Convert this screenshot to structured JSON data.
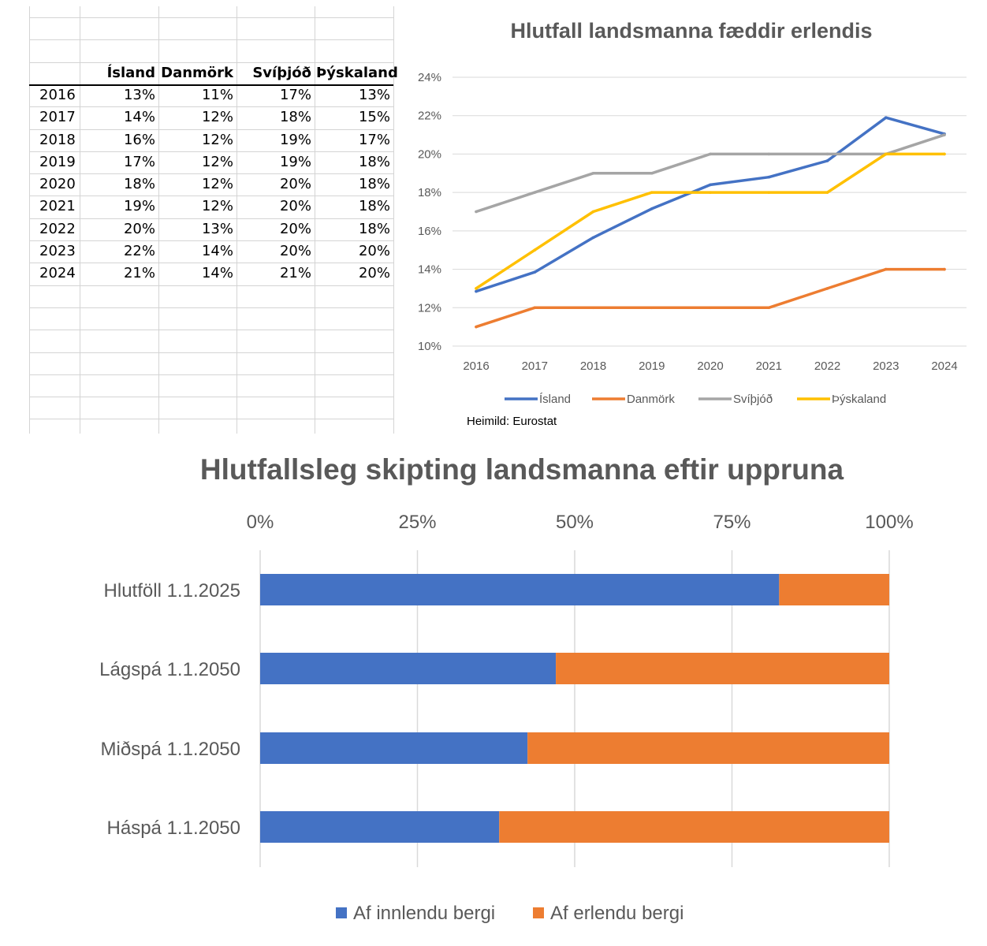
{
  "table": {
    "headers": [
      "Ísland",
      "Danmörk",
      "Svíþjóð",
      "Þýskaland"
    ],
    "rows": [
      {
        "year": "2016",
        "values": [
          "13%",
          "11%",
          "17%",
          "13%"
        ]
      },
      {
        "year": "2017",
        "values": [
          "14%",
          "12%",
          "18%",
          "15%"
        ]
      },
      {
        "year": "2018",
        "values": [
          "16%",
          "12%",
          "19%",
          "17%"
        ]
      },
      {
        "year": "2019",
        "values": [
          "17%",
          "12%",
          "19%",
          "18%"
        ]
      },
      {
        "year": "2020",
        "values": [
          "18%",
          "12%",
          "20%",
          "18%"
        ]
      },
      {
        "year": "2021",
        "values": [
          "19%",
          "12%",
          "20%",
          "18%"
        ]
      },
      {
        "year": "2022",
        "values": [
          "20%",
          "13%",
          "20%",
          "18%"
        ]
      },
      {
        "year": "2023",
        "values": [
          "22%",
          "14%",
          "20%",
          "20%"
        ]
      },
      {
        "year": "2024",
        "values": [
          "21%",
          "14%",
          "21%",
          "20%"
        ]
      }
    ]
  },
  "chart_data": [
    {
      "type": "line",
      "title": "Hlutfall landsmanna fæddir erlendis",
      "x": [
        "2016",
        "2017",
        "2018",
        "2019",
        "2020",
        "2021",
        "2022",
        "2023",
        "2024"
      ],
      "ylim": [
        10,
        24
      ],
      "y_ticks": [
        "10%",
        "12%",
        "14%",
        "16%",
        "18%",
        "20%",
        "22%",
        "24%"
      ],
      "grid": true,
      "legend_position": "bottom",
      "source_note": "Heimild: Eurostat",
      "series": [
        {
          "name": "Ísland",
          "color": "#4472C4",
          "values": [
            12.85,
            13.85,
            15.65,
            17.15,
            18.4,
            18.8,
            19.65,
            21.9,
            21.05
          ]
        },
        {
          "name": "Danmörk",
          "color": "#ED7D31",
          "values": [
            11,
            12,
            12,
            12,
            12,
            12,
            13,
            14,
            14
          ]
        },
        {
          "name": "Svíþjóð",
          "color": "#A5A5A5",
          "values": [
            17,
            18,
            19,
            19,
            20,
            20,
            20,
            20,
            21
          ]
        },
        {
          "name": "Þýskaland",
          "color": "#FFC000",
          "values": [
            13,
            15,
            17,
            18,
            18,
            18,
            18,
            20,
            20
          ]
        }
      ]
    },
    {
      "type": "bar",
      "orientation": "horizontal",
      "stacked": true,
      "title": "Hlutfallsleg skipting landsmanna eftir uppruna",
      "categories": [
        "Hlutföll 1.1.2025",
        "Lágspá 1.1.2050",
        "Miðspá 1.1.2050",
        "Háspá 1.1.2050"
      ],
      "xlim": [
        0,
        100
      ],
      "x_ticks": [
        "0%",
        "25%",
        "50%",
        "75%",
        "100%"
      ],
      "grid": true,
      "legend_position": "bottom",
      "series": [
        {
          "name": "Af innlendu bergi",
          "color": "#4472C4",
          "values": [
            82.5,
            47,
            42.5,
            38
          ]
        },
        {
          "name": "Af erlendu bergi",
          "color": "#ED7D31",
          "values": [
            17.5,
            53,
            57.5,
            62
          ]
        }
      ]
    }
  ]
}
